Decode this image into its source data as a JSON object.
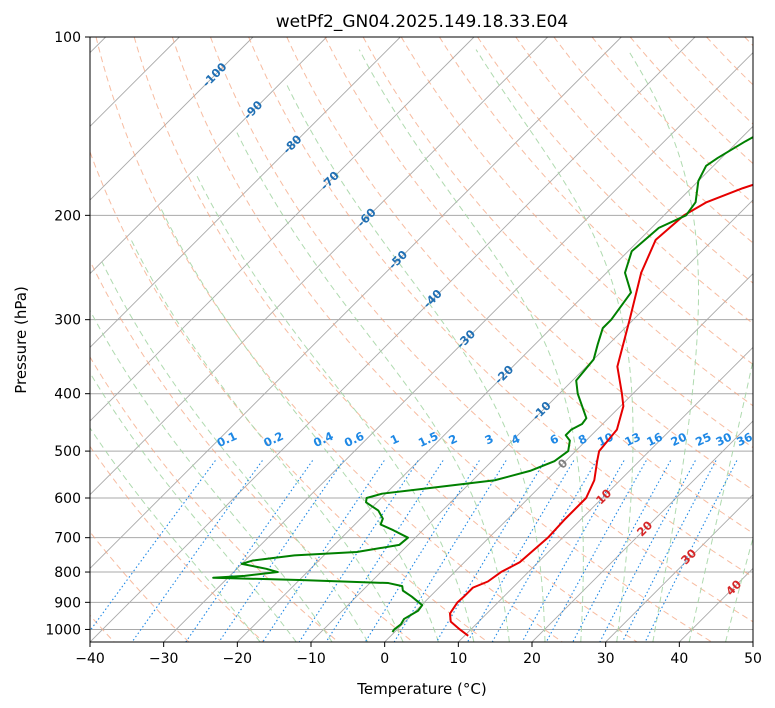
{
  "chart_data": {
    "type": "line",
    "title": "wetPf2_GN04.2025.149.18.33.E04",
    "xlabel": "Temperature (°C)",
    "ylabel": "Pressure (hPa)",
    "xlim": [
      -40,
      50
    ],
    "ylim": [
      1050,
      100
    ],
    "y_scale": "log",
    "grid": true,
    "x_ticks": [
      -40,
      -30,
      -20,
      -10,
      0,
      10,
      20,
      30,
      40,
      50
    ],
    "y_ticks": [
      100,
      200,
      300,
      400,
      500,
      600,
      700,
      800,
      900,
      1000
    ],
    "series": [
      {
        "color": "#e60000",
        "points": [
          {
            "p": 1025,
            "t": 10.5
          },
          {
            "p": 1000,
            "t": 8.5
          },
          {
            "p": 970,
            "t": 6.2
          },
          {
            "p": 940,
            "t": 5.0
          },
          {
            "p": 900,
            "t": 4.5
          },
          {
            "p": 880,
            "t": 4.6
          },
          {
            "p": 850,
            "t": 4.6
          },
          {
            "p": 830,
            "t": 5.8
          },
          {
            "p": 800,
            "t": 6.3
          },
          {
            "p": 770,
            "t": 7.5
          },
          {
            "p": 700,
            "t": 8.0
          },
          {
            "p": 650,
            "t": 7.8
          },
          {
            "p": 600,
            "t": 7.8
          },
          {
            "p": 560,
            "t": 6.5
          },
          {
            "p": 520,
            "t": 4.3
          },
          {
            "p": 500,
            "t": 3.2
          },
          {
            "p": 460,
            "t": 2.7
          },
          {
            "p": 420,
            "t": 0.4
          },
          {
            "p": 400,
            "t": -1.5
          },
          {
            "p": 360,
            "t": -5.8
          },
          {
            "p": 300,
            "t": -10.5
          },
          {
            "p": 250,
            "t": -15.3
          },
          {
            "p": 220,
            "t": -17.8
          },
          {
            "p": 200,
            "t": -17.3
          },
          {
            "p": 190,
            "t": -16.0
          },
          {
            "p": 180,
            "t": -13.0
          },
          {
            "p": 170,
            "t": -9.0
          },
          {
            "p": 160,
            "t": -6.0
          },
          {
            "p": 150,
            "t": -4.0
          },
          {
            "p": 140,
            "t": -2.5
          },
          {
            "p": 130,
            "t": -1.0
          },
          {
            "p": 120,
            "t": 0.5
          },
          {
            "p": 110,
            "t": 2.5
          },
          {
            "p": 100,
            "t": 4.0
          }
        ]
      },
      {
        "color": "#008000",
        "points": [
          {
            "p": 1010,
            "t": -0.3
          },
          {
            "p": 1000,
            "t": -0.4
          },
          {
            "p": 980,
            "t": -0.2
          },
          {
            "p": 960,
            "t": -0.5
          },
          {
            "p": 930,
            "t": 0.3
          },
          {
            "p": 910,
            "t": 0.1
          },
          {
            "p": 880,
            "t": -2.5
          },
          {
            "p": 860,
            "t": -4.5
          },
          {
            "p": 845,
            "t": -5.2
          },
          {
            "p": 835,
            "t": -7.5
          },
          {
            "p": 825,
            "t": -20.0
          },
          {
            "p": 818,
            "t": -32.0
          },
          {
            "p": 812,
            "t": -28.0
          },
          {
            "p": 800,
            "t": -24.0
          },
          {
            "p": 790,
            "t": -26.0
          },
          {
            "p": 775,
            "t": -30.0
          },
          {
            "p": 765,
            "t": -29.0
          },
          {
            "p": 750,
            "t": -24.0
          },
          {
            "p": 740,
            "t": -16.0
          },
          {
            "p": 720,
            "t": -11.2
          },
          {
            "p": 700,
            "t": -11.0
          },
          {
            "p": 680,
            "t": -14.0
          },
          {
            "p": 665,
            "t": -16.5
          },
          {
            "p": 650,
            "t": -17.0
          },
          {
            "p": 630,
            "t": -18.7
          },
          {
            "p": 610,
            "t": -21.5
          },
          {
            "p": 600,
            "t": -22.0
          },
          {
            "p": 590,
            "t": -20.5
          },
          {
            "p": 580,
            "t": -16.0
          },
          {
            "p": 560,
            "t": -7.0
          },
          {
            "p": 540,
            "t": -3.5
          },
          {
            "p": 520,
            "t": -1.5
          },
          {
            "p": 500,
            "t": -1.0
          },
          {
            "p": 480,
            "t": -2.2
          },
          {
            "p": 470,
            "t": -3.5
          },
          {
            "p": 460,
            "t": -3.5
          },
          {
            "p": 450,
            "t": -2.8
          },
          {
            "p": 440,
            "t": -3.0
          },
          {
            "p": 400,
            "t": -7.5
          },
          {
            "p": 380,
            "t": -9.5
          },
          {
            "p": 350,
            "t": -10.0
          },
          {
            "p": 330,
            "t": -11.5
          },
          {
            "p": 310,
            "t": -13.0
          },
          {
            "p": 300,
            "t": -13.0
          },
          {
            "p": 270,
            "t": -14.0
          },
          {
            "p": 250,
            "t": -17.5
          },
          {
            "p": 230,
            "t": -19.5
          },
          {
            "p": 210,
            "t": -19.0
          },
          {
            "p": 200,
            "t": -17.0
          },
          {
            "p": 190,
            "t": -17.5
          },
          {
            "p": 175,
            "t": -20.0
          },
          {
            "p": 165,
            "t": -21.0
          },
          {
            "p": 160,
            "t": -20.5
          },
          {
            "p": 150,
            "t": -19.0
          },
          {
            "p": 140,
            "t": -17.0
          },
          {
            "p": 130,
            "t": -15.0
          },
          {
            "p": 120,
            "t": -13.0
          },
          {
            "p": 110,
            "t": -11.0
          },
          {
            "p": 100,
            "t": -9.0
          }
        ]
      }
    ],
    "isotherm_labels": [
      "-100",
      "-90",
      "-80",
      "-70",
      "-60",
      "-50",
      "-40",
      "-30",
      "-20",
      "-10"
    ],
    "mixing_ratio_labels": [
      "0.1",
      "0.2",
      "0.4",
      "0.6",
      "1",
      "1.5",
      "2",
      "3",
      "4",
      "6",
      "8",
      "10",
      "13",
      "16",
      "20",
      "25",
      "30",
      "36"
    ],
    "moist_adiabat_labels": [
      "0",
      "10",
      "20",
      "30",
      "40"
    ],
    "colors": {
      "temperature": "#e60000",
      "dewpoint": "#008000",
      "isotherm_label": "#1f6fb4",
      "mixing_ratio": "#1e88e5",
      "moist_label": "#d62728",
      "zero_label": "#7f7f7f",
      "dry_adiabat": "#f4a582",
      "moist_adiabat": "#a6d6a6",
      "isotherm_line": "#a9a9a9",
      "isotherm_curve": "#d2b48c"
    }
  }
}
